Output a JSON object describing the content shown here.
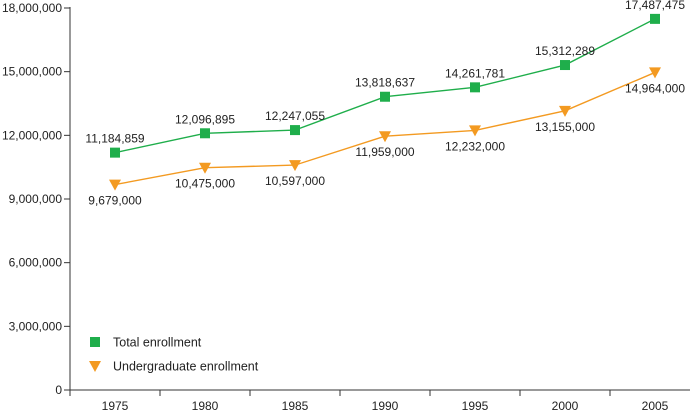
{
  "chart_data": {
    "type": "line",
    "title": "",
    "xlabel": "",
    "ylabel": "",
    "x": [
      "1975",
      "1980",
      "1985",
      "1990",
      "1995",
      "2000",
      "2005"
    ],
    "ylim": [
      0,
      18000000
    ],
    "yticks": [
      "0",
      "3,000,000",
      "6,000,000",
      "9,000,000",
      "12,000,000",
      "15,000,000",
      "18,000,000"
    ],
    "ytick_values": [
      0,
      3000000,
      6000000,
      9000000,
      12000000,
      15000000,
      18000000
    ],
    "grid": false,
    "legend_position": "bottom-left",
    "series": [
      {
        "name": "Total enrollment",
        "color": "#1fae4b",
        "marker": "square",
        "values": [
          11184859,
          12096895,
          12247055,
          13818637,
          14261781,
          15312289,
          17487475
        ],
        "labels": [
          "11,184,859",
          "12,096,895",
          "12,247,055",
          "13,818,637",
          "14,261,781",
          "15,312,289",
          "17,487,475"
        ],
        "label_position": "above"
      },
      {
        "name": "Undergraduate enrollment",
        "color": "#f39a21",
        "marker": "triangle-down",
        "values": [
          9679000,
          10475000,
          10597000,
          11959000,
          12232000,
          13155000,
          14964000
        ],
        "labels": [
          "9,679,000",
          "10,475,000",
          "10,597,000",
          "11,959,000",
          "12,232,000",
          "13,155,000",
          "14,964,000"
        ],
        "label_position": "below"
      }
    ]
  }
}
